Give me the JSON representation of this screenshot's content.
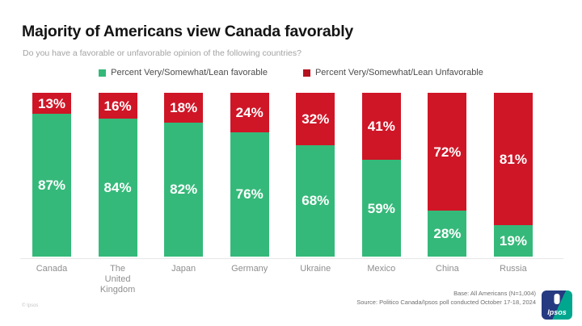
{
  "header": {
    "title": "Majority of Americans view Canada favorably",
    "subtitle": "Do you have a favorable or unfavorable opinion of the following countries?"
  },
  "legend": {
    "favorable_label": "Percent Very/Somewhat/Lean favorable",
    "unfavorable_label": "Percent Very/Somewhat/Lean Unfavorable"
  },
  "chart_data": {
    "type": "bar",
    "stacked": true,
    "orientation": "vertical",
    "categories": [
      "Canada",
      "The United Kingdom",
      "Japan",
      "Germany",
      "Ukraine",
      "Mexico",
      "China",
      "Russia"
    ],
    "series": [
      {
        "name": "Percent Very/Somewhat/Lean favorable",
        "color": "#35b97a",
        "values": [
          87,
          84,
          82,
          76,
          68,
          59,
          28,
          19
        ]
      },
      {
        "name": "Percent Very/Somewhat/Lean Unfavorable",
        "color": "#cf1627",
        "values": [
          13,
          16,
          18,
          24,
          32,
          41,
          72,
          81
        ]
      }
    ],
    "value_suffix": "%",
    "ylim": [
      0,
      100
    ],
    "grid": false,
    "legend_position": "top",
    "data_labels": "inside-white-bold"
  },
  "footer": {
    "base_note": "Base: All Americans (N=1,004)",
    "source_note": "Source: Politico Canada/Ipsos poll conducted October 17-18, 2024",
    "copyright": "© Ipsos",
    "logo_text": "Ipsos"
  },
  "colors": {
    "favorable_green": "#35b97a",
    "unfavorable_red": "#cf1627",
    "legend_green": "#35b97a",
    "legend_red": "#b5121f",
    "logo_navy": "#253a80",
    "logo_teal": "#00a78f",
    "axis_line": "#e7e7e7"
  }
}
